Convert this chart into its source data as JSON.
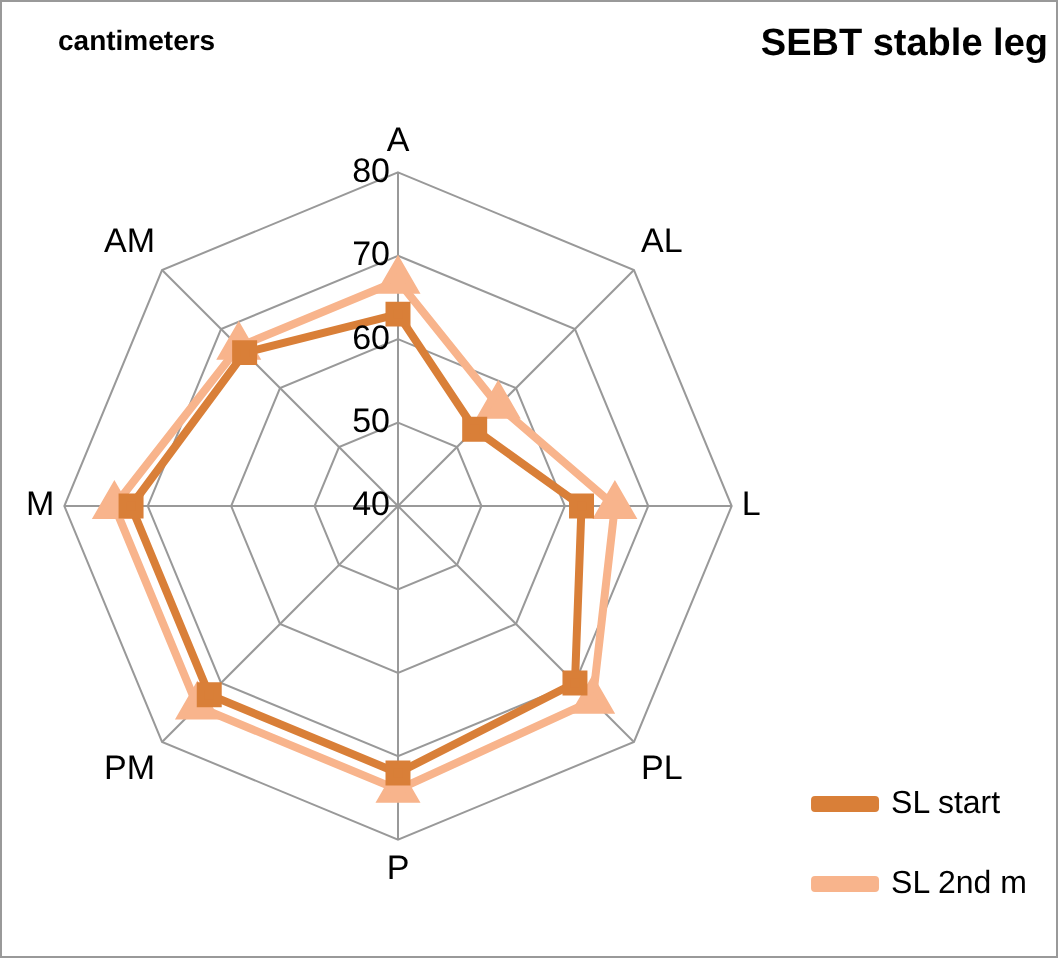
{
  "chart_data": {
    "type": "radar",
    "title": "SEBT stable leg",
    "annotations": [
      "cantimeters"
    ],
    "categories": [
      "A",
      "AL",
      "L",
      "PL",
      "P",
      "PM",
      "M",
      "AM"
    ],
    "series": [
      {
        "name": "SL start",
        "color": "#d97f38",
        "marker": "square",
        "values": [
          63,
          53,
          62,
          70,
          72,
          72,
          72,
          66
        ]
      },
      {
        "name": "SL 2nd m",
        "color": "#f8b48c",
        "marker": "triangle",
        "values": [
          67,
          57,
          66,
          73,
          74,
          74,
          74,
          67
        ]
      }
    ],
    "ylim": [
      40,
      80
    ],
    "yticks": [
      40,
      50,
      60,
      70,
      80
    ],
    "grid": true,
    "legend": "bottom right"
  }
}
